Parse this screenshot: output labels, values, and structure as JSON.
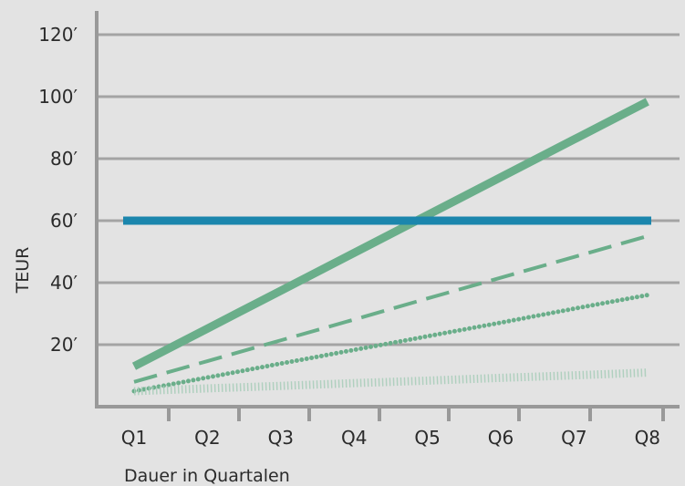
{
  "chart_data": {
    "type": "line",
    "title": "",
    "xlabel": "Dauer in Quartalen",
    "ylabel": "TEUR",
    "categories": [
      "Q1",
      "Q2",
      "Q3",
      "Q4",
      "Q5",
      "Q6",
      "Q7",
      "Q8"
    ],
    "y_ticks": [
      "20′",
      "40′",
      "60′",
      "80′",
      "100′",
      "120′"
    ],
    "ylim": [
      0,
      120
    ],
    "grid": true,
    "legend": "none",
    "series": [
      {
        "values": [
          13,
          25.2,
          37.4,
          49.6,
          61.8,
          74.0,
          86.2,
          98.4
        ],
        "color": "#6aae8a",
        "style": "solid-thick"
      },
      {
        "values": [
          60,
          60,
          60,
          60,
          60,
          60,
          60,
          60
        ],
        "color": "#1b86ad",
        "style": "solid-thick"
      },
      {
        "values": [
          8,
          14.7,
          21.4,
          28.1,
          34.9,
          41.6,
          48.3,
          55
        ],
        "color": "#6aae8a",
        "style": "dashed"
      },
      {
        "values": [
          5,
          9.4,
          13.9,
          18.3,
          22.7,
          27.1,
          31.6,
          36
        ],
        "color": "#6aae8a",
        "style": "dotted"
      },
      {
        "values": [
          5,
          5.9,
          6.7,
          7.6,
          8.4,
          9.3,
          10.1,
          11
        ],
        "color": "#a7cdb8",
        "style": "hatched"
      }
    ]
  }
}
